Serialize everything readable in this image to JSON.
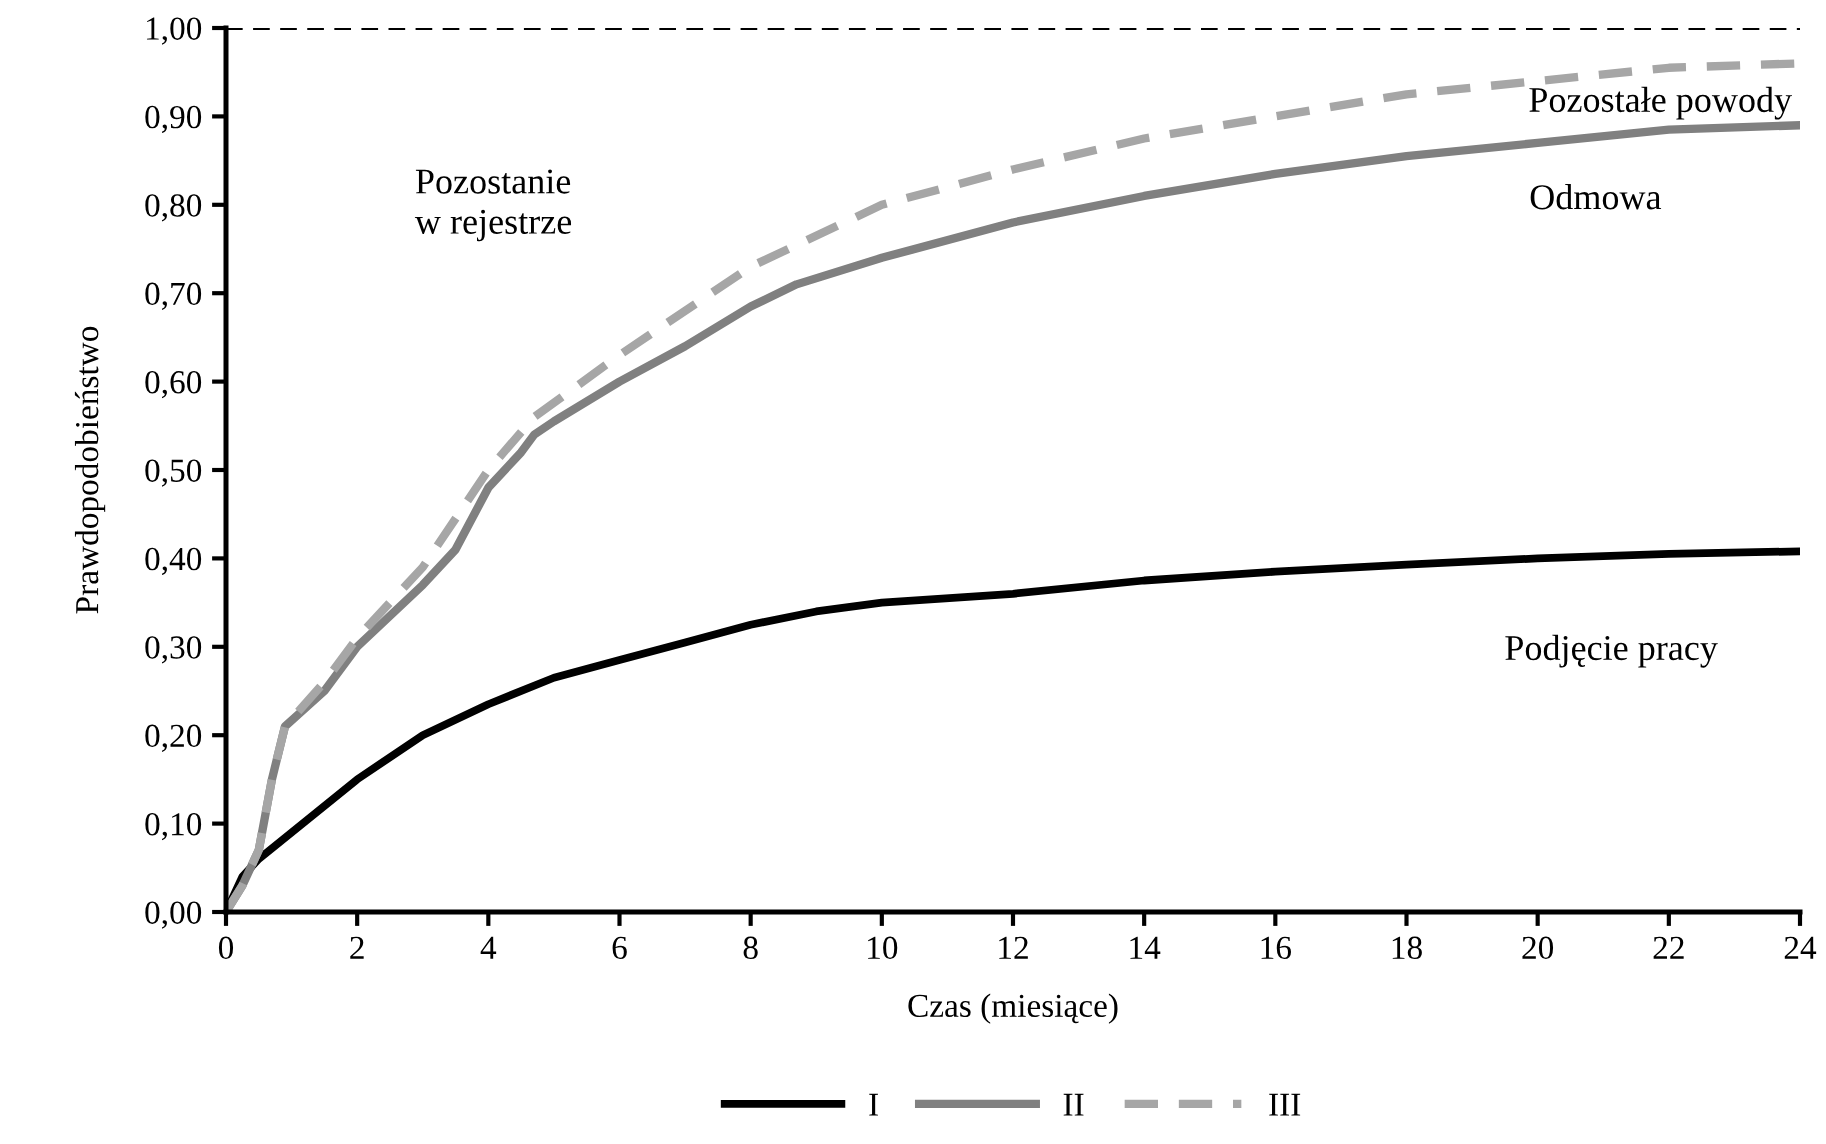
{
  "chart_data": {
    "type": "line",
    "xlabel": "Czas (miesiące)",
    "ylabel": "Prawdopodobieństwo",
    "xlim": [
      0,
      24
    ],
    "xticks": [
      0,
      2,
      4,
      6,
      8,
      10,
      12,
      14,
      16,
      18,
      20,
      22,
      24
    ],
    "ylim": [
      0,
      1
    ],
    "yticks": [
      {
        "value": 0,
        "label": "0,00"
      },
      {
        "value": 0.1,
        "label": "0,10"
      },
      {
        "value": 0.2,
        "label": "0,20"
      },
      {
        "value": 0.3,
        "label": "0,30"
      },
      {
        "value": 0.4,
        "label": "0,40"
      },
      {
        "value": 0.5,
        "label": "0,50"
      },
      {
        "value": 0.6,
        "label": "0,60"
      },
      {
        "value": 0.7,
        "label": "0,70"
      },
      {
        "value": 0.8,
        "label": "0,80"
      },
      {
        "value": 0.9,
        "label": "0,90"
      },
      {
        "value": 1,
        "label": "1,00"
      }
    ],
    "grid": false,
    "legend": "bottom",
    "marker": "none",
    "series": [
      {
        "name": "I",
        "color": "#000000",
        "line_style": "solid",
        "x": [
          0,
          0.25,
          0.5,
          1,
          2,
          3,
          4,
          5,
          6,
          7,
          8,
          9,
          10,
          12,
          14,
          16,
          18,
          20,
          22,
          24
        ],
        "values": [
          0,
          0.04,
          0.06,
          0.09,
          0.15,
          0.2,
          0.235,
          0.265,
          0.285,
          0.305,
          0.325,
          0.34,
          0.35,
          0.36,
          0.375,
          0.385,
          0.393,
          0.4,
          0.405,
          0.408
        ]
      },
      {
        "name": "II",
        "color": "#808080",
        "line_style": "solid",
        "x": [
          0,
          0.25,
          0.5,
          0.7,
          0.9,
          1.5,
          2,
          3,
          3.5,
          4,
          4.5,
          4.7,
          5,
          6,
          7,
          8,
          8.7,
          10,
          12,
          14,
          16,
          18,
          20,
          22,
          24
        ],
        "values": [
          0,
          0.03,
          0.07,
          0.15,
          0.21,
          0.25,
          0.3,
          0.37,
          0.41,
          0.48,
          0.52,
          0.54,
          0.555,
          0.6,
          0.64,
          0.685,
          0.71,
          0.74,
          0.78,
          0.81,
          0.835,
          0.855,
          0.87,
          0.885,
          0.89
        ]
      },
      {
        "name": "III",
        "color": "#a6a6a6",
        "line_style": "dashed",
        "x": [
          0,
          0.25,
          0.5,
          0.7,
          0.9,
          1.5,
          2,
          3,
          4,
          4.7,
          6,
          8,
          10,
          12,
          14,
          16,
          18,
          20,
          22,
          24
        ],
        "values": [
          0,
          0.03,
          0.07,
          0.15,
          0.21,
          0.26,
          0.31,
          0.39,
          0.5,
          0.56,
          0.63,
          0.73,
          0.8,
          0.84,
          0.875,
          0.9,
          0.925,
          0.94,
          0.955,
          0.96
        ]
      }
    ],
    "ref_lines": [
      {
        "axis": "y",
        "value": 1,
        "color": "#000000",
        "line_style": "dashed"
      }
    ],
    "annotations": [
      "Pozostanie\nw rejestrze",
      "Pozostałe powody",
      "Odmowa",
      "Podjęcie pracy"
    ]
  }
}
